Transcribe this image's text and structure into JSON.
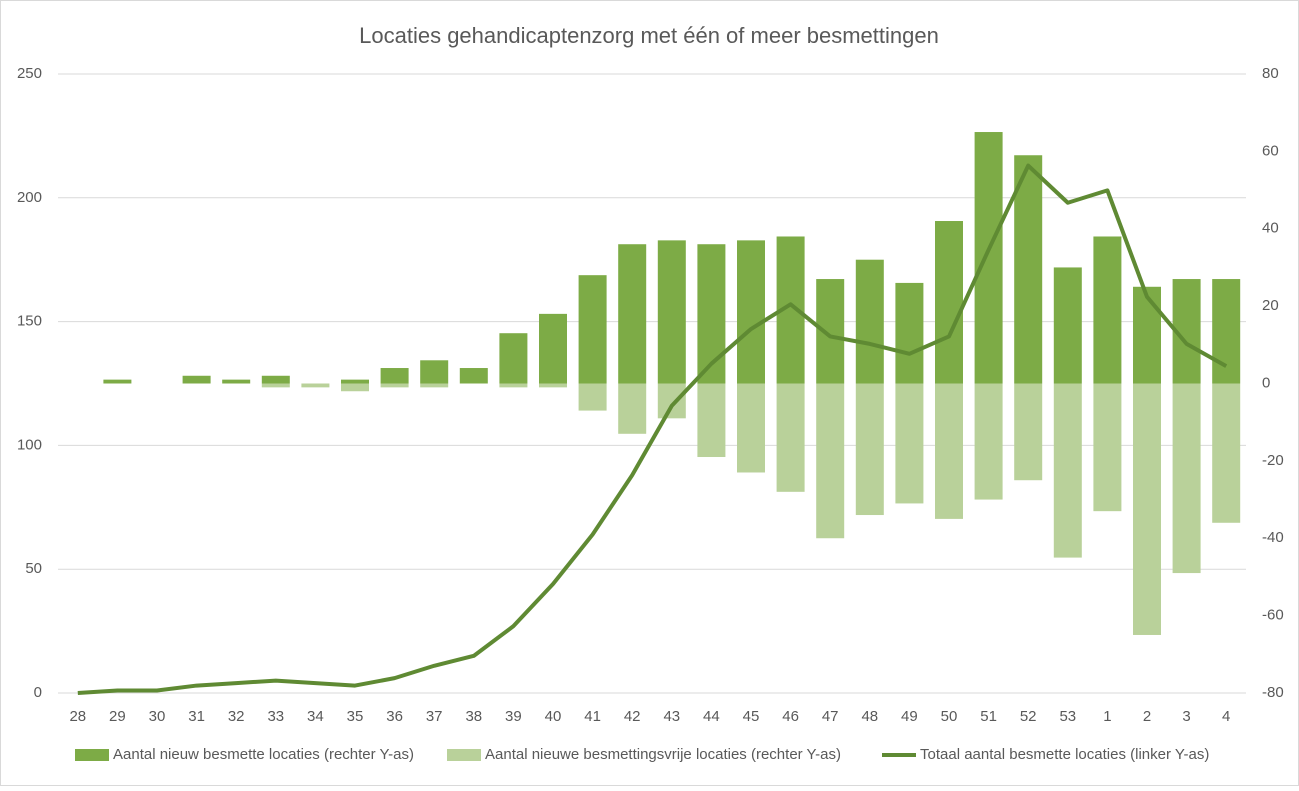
{
  "chart_data": {
    "type": "bar",
    "title": "Locaties gehandicaptenzorg met één of meer besmettingen",
    "categories": [
      "28",
      "29",
      "30",
      "31",
      "32",
      "33",
      "34",
      "35",
      "36",
      "37",
      "38",
      "39",
      "40",
      "41",
      "42",
      "43",
      "44",
      "45",
      "46",
      "47",
      "48",
      "49",
      "50",
      "51",
      "52",
      "53",
      "1",
      "2",
      "3",
      "4"
    ],
    "series": [
      {
        "name": "Aantal nieuw besmette locaties (rechter Y-as)",
        "type": "bar",
        "axis": "y2",
        "color": "#7dab46",
        "values": [
          0,
          1,
          0,
          2,
          1,
          2,
          0,
          1,
          4,
          6,
          4,
          13,
          18,
          28,
          36,
          37,
          36,
          37,
          38,
          27,
          32,
          26,
          42,
          65,
          59,
          30,
          38,
          25,
          27,
          27
        ]
      },
      {
        "name": "Aantal nieuwe besmettingsvrije locaties (rechter Y-as)",
        "type": "bar",
        "axis": "y2",
        "color": "#b9d19a",
        "values": [
          0,
          0,
          0,
          0,
          0,
          -1,
          -1,
          -2,
          -1,
          -1,
          0,
          -1,
          -1,
          -7,
          -13,
          -9,
          -19,
          -23,
          -28,
          -40,
          -34,
          -31,
          -35,
          -30,
          -25,
          -45,
          -33,
          -65,
          -49,
          -36
        ]
      },
      {
        "name": "Totaal aantal besmette locaties (linker Y-as)",
        "type": "line",
        "axis": "y",
        "color": "#5f8a33",
        "values": [
          0,
          1,
          1,
          3,
          4,
          5,
          4,
          3,
          6,
          11,
          15,
          27,
          44,
          64,
          88,
          116,
          133,
          147,
          157,
          144,
          141,
          137,
          144,
          179,
          213,
          198,
          203,
          160,
          141,
          132
        ]
      }
    ],
    "ylim": [
      0,
      250
    ],
    "yticks": [
      0,
      50,
      100,
      150,
      200,
      250
    ],
    "y2lim": [
      -80,
      80
    ],
    "y2ticks": [
      -80,
      -60,
      -40,
      -20,
      0,
      20,
      40,
      60,
      80
    ],
    "grid": true
  }
}
